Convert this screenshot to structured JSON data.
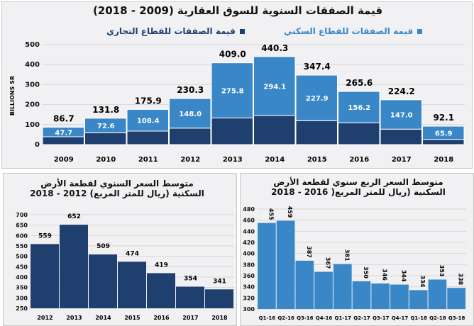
{
  "chart_data": [
    {
      "type": "bar",
      "stacked": true,
      "title": "قيمة الصفقات السنوية للسوق العقارية (2009 - 2018)",
      "ylabel": "BILLIONS SR",
      "ylim": [
        0,
        500
      ],
      "yticks": [
        0,
        100,
        200,
        300,
        400,
        500
      ],
      "grid": true,
      "legend": "top",
      "categories": [
        "2009",
        "2010",
        "2011",
        "2012",
        "2013",
        "2014",
        "2015",
        "2016",
        "2017",
        "2018"
      ],
      "totals": [
        86.7,
        131.8,
        175.9,
        230.3,
        409.0,
        440.3,
        347.4,
        265.6,
        224.2,
        92.1
      ],
      "series": [
        {
          "name": "قيمة الصفقات للقطاع التجاري",
          "color": "#1f3f6e",
          "values": [
            39.0,
            59.2,
            67.5,
            82.3,
            133.2,
            146.2,
            119.5,
            109.4,
            77.2,
            26.2
          ]
        },
        {
          "name": "قيمة الصفقات للقطاع السكني",
          "color": "#3a87c8",
          "values": [
            47.7,
            72.6,
            108.4,
            148.0,
            275.8,
            294.1,
            227.9,
            156.2,
            147.0,
            65.9
          ]
        }
      ]
    },
    {
      "type": "bar",
      "title": [
        "متوسط السعر السنوي لقطعة الأرض",
        "السكنية (ريال للمتر المربع) 2012 - 2018"
      ],
      "ylim": [
        250,
        700
      ],
      "yticks": [
        250,
        300,
        350,
        400,
        450,
        500,
        550,
        600,
        650,
        700
      ],
      "color": "#1f3f6e",
      "categories": [
        "2012",
        "2013",
        "2014",
        "2015",
        "2016",
        "2017",
        "2018"
      ],
      "values": [
        559,
        652,
        509,
        474,
        419,
        354,
        341
      ]
    },
    {
      "type": "bar",
      "title": [
        "متوسط السعر الربع سنوي لقطعة الأرض",
        "السكنية (ريال للمتر المربع( 2016 - 2018"
      ],
      "ylim": [
        300,
        480
      ],
      "yticks": [
        300,
        320,
        340,
        360,
        380,
        400,
        420,
        440,
        460,
        480
      ],
      "color": "#3a87c8",
      "categories": [
        "Q1-16",
        "Q2-16",
        "Q3-16",
        "Q4-16",
        "Q1-17",
        "Q2-17",
        "Q3-17",
        "Q4-17",
        "Q1-18",
        "Q2-18",
        "Q3-18"
      ],
      "values": [
        455,
        459,
        387,
        367,
        381,
        350,
        346,
        344,
        334,
        353,
        338
      ]
    }
  ]
}
